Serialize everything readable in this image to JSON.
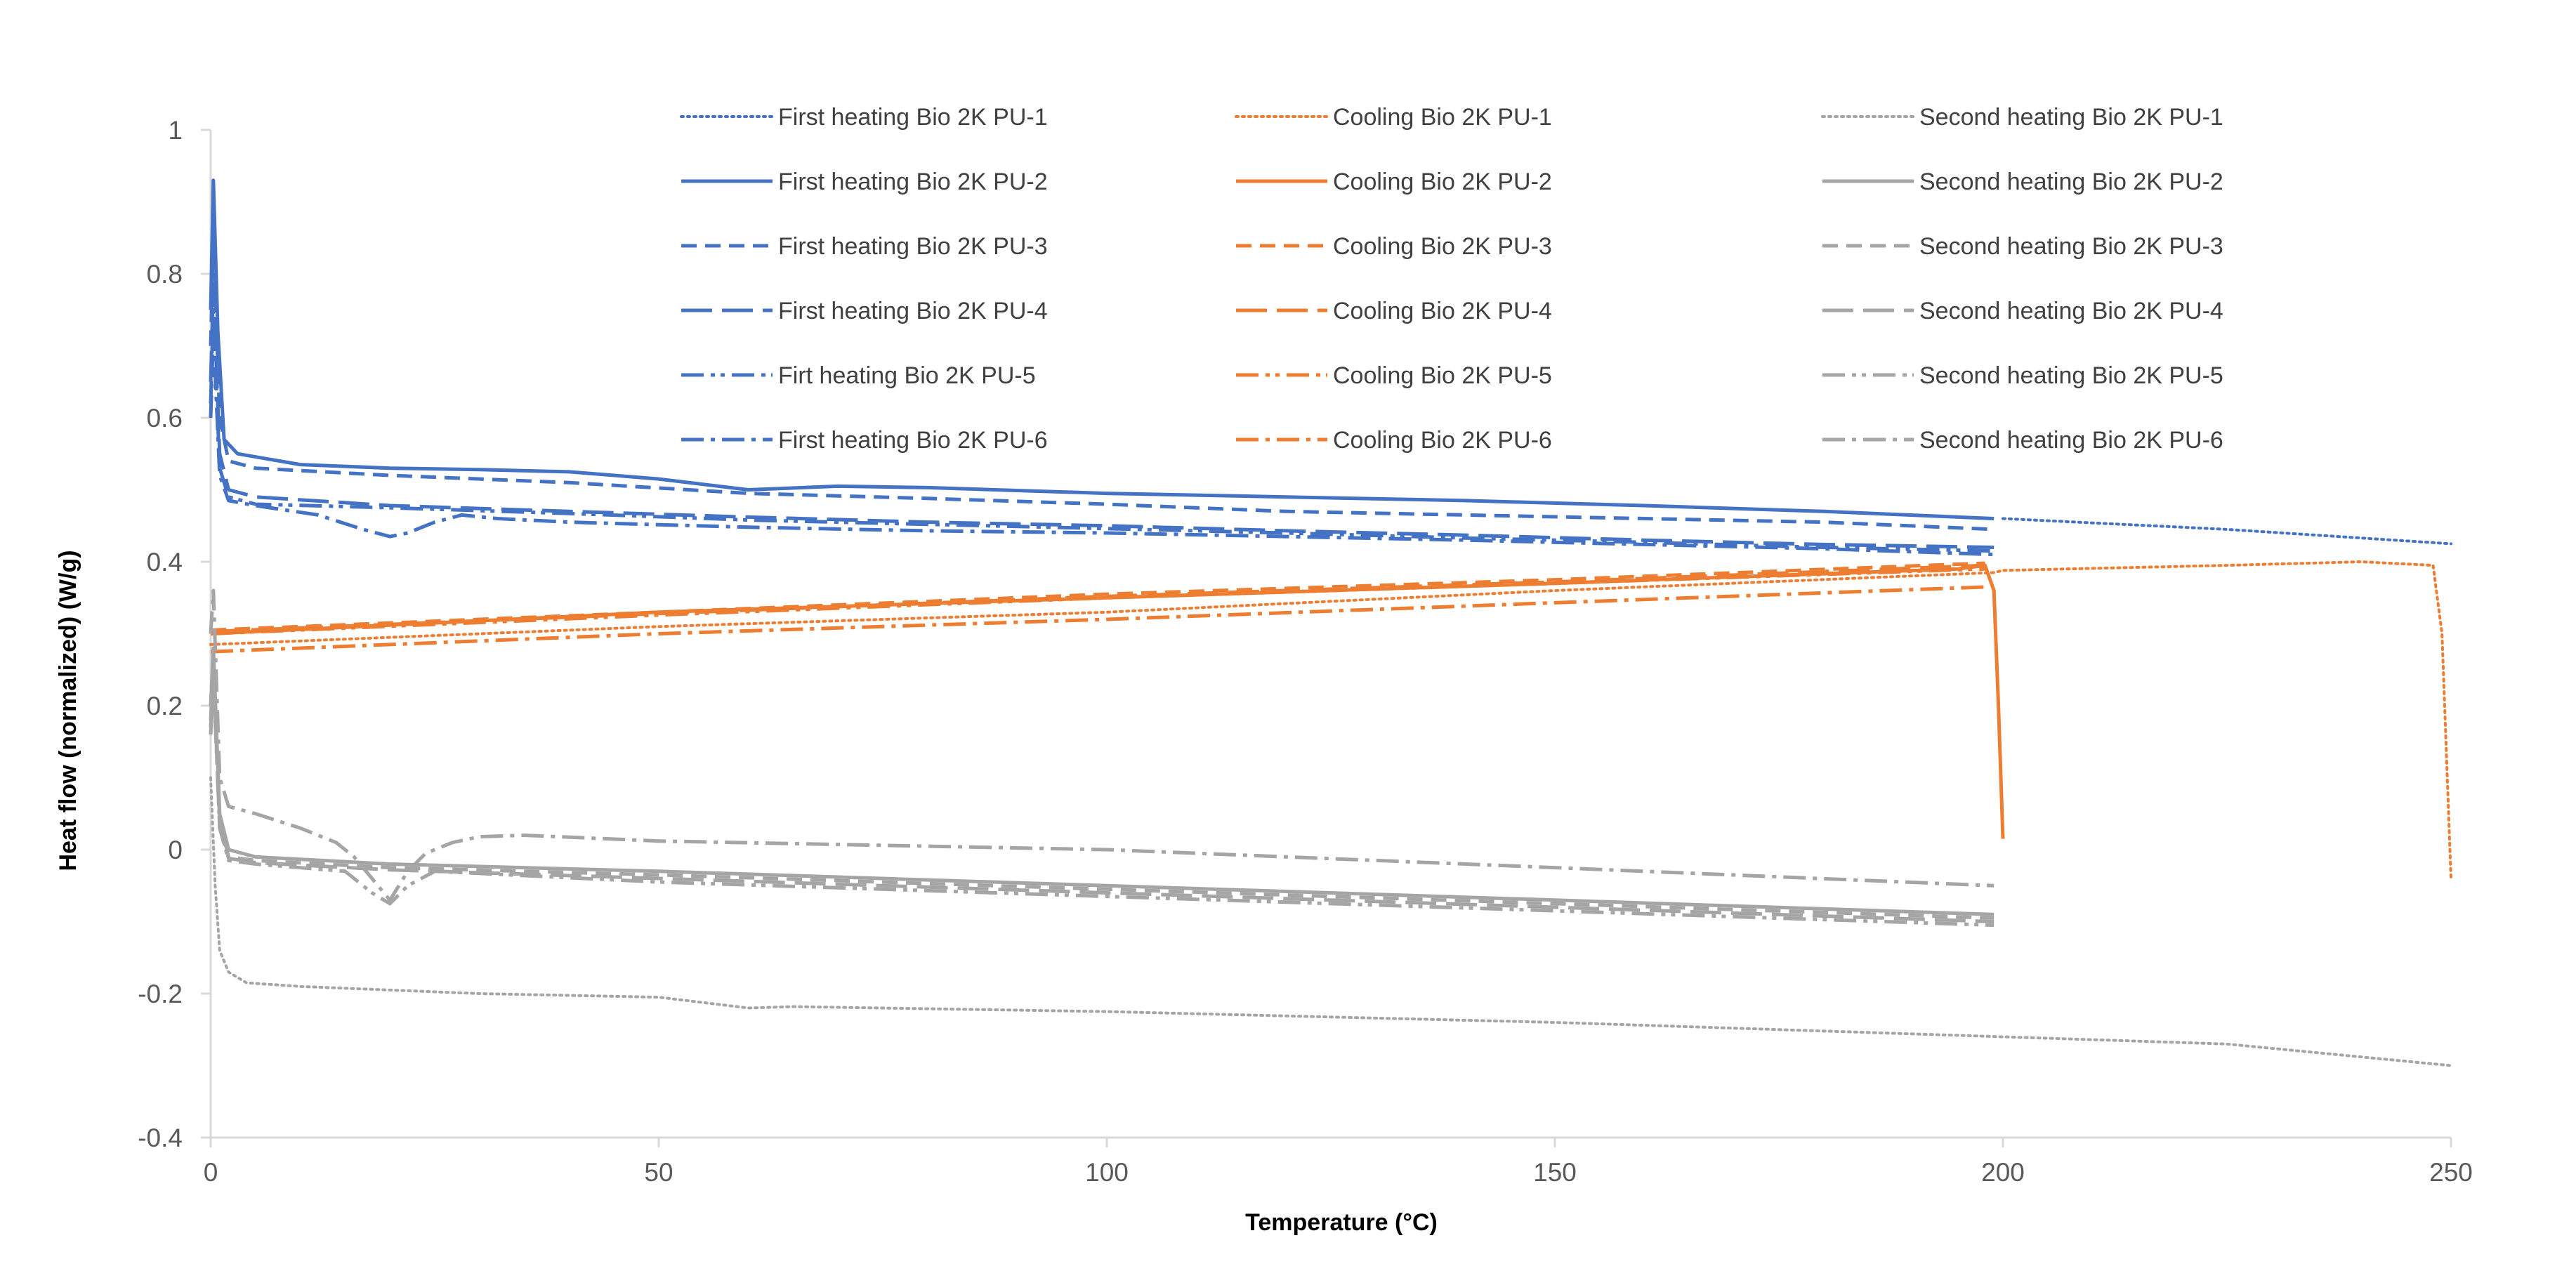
{
  "colors": {
    "first_heating": "#4472c4",
    "cooling": "#ed7d31",
    "second_heating": "#a5a5a5",
    "axis": "#d9d9d9",
    "tick_text": "#595959",
    "axis_title": "#000000"
  },
  "chart_data": {
    "type": "line",
    "title": "",
    "xlabel": "Temperature (°C)",
    "ylabel": "Heat flow (normalized) (W/g)",
    "xlim": [
      0,
      250
    ],
    "ylim": [
      -0.4,
      1.0
    ],
    "xticks": [
      0,
      50,
      100,
      150,
      200,
      250
    ],
    "yticks": [
      -0.4,
      -0.2,
      0,
      0.2,
      0.4,
      0.6,
      0.8,
      1.0
    ],
    "xtick_labels": [
      "0",
      "50",
      "100",
      "150",
      "200",
      "250"
    ],
    "ytick_labels": [
      "-0.4",
      "-0.2",
      "0",
      "0.2",
      "0.4",
      "0.6",
      "0.8",
      "1"
    ],
    "grid": false,
    "legend_position": "top",
    "series": [
      {
        "name": "First heating Bio 2K PU-1",
        "group": "first_heating",
        "style": "dotted",
        "x": [
          200,
          225,
          250
        ],
        "y": [
          0.46,
          0.445,
          0.425
        ]
      },
      {
        "name": "First heating Bio 2K PU-2",
        "group": "first_heating",
        "style": "solid",
        "x": [
          0,
          0.3,
          0.8,
          1.5,
          3,
          10,
          20,
          30,
          40,
          50,
          60,
          70,
          80,
          100,
          120,
          140,
          160,
          180,
          199
        ],
        "y": [
          0.75,
          0.93,
          0.72,
          0.57,
          0.55,
          0.535,
          0.53,
          0.528,
          0.525,
          0.515,
          0.5,
          0.505,
          0.503,
          0.495,
          0.49,
          0.485,
          0.478,
          0.47,
          0.46
        ]
      },
      {
        "name": "First heating Bio 2K PU-3",
        "group": "first_heating",
        "style": "dashed",
        "x": [
          0,
          0.3,
          1,
          2,
          5,
          20,
          40,
          60,
          80,
          100,
          120,
          140,
          160,
          180,
          199
        ],
        "y": [
          0.7,
          0.85,
          0.6,
          0.54,
          0.53,
          0.52,
          0.51,
          0.495,
          0.488,
          0.48,
          0.47,
          0.465,
          0.46,
          0.455,
          0.445
        ]
      },
      {
        "name": "First heating Bio 2K PU-4",
        "group": "first_heating",
        "style": "longdash",
        "x": [
          0,
          0.3,
          1,
          2,
          5,
          20,
          40,
          60,
          80,
          100,
          120,
          140,
          160,
          180,
          199
        ],
        "y": [
          0.65,
          0.78,
          0.55,
          0.5,
          0.49,
          0.478,
          0.47,
          0.462,
          0.455,
          0.45,
          0.443,
          0.437,
          0.43,
          0.424,
          0.42
        ]
      },
      {
        "name": "Firt heating Bio 2K PU-5",
        "group": "first_heating",
        "style": "dashdotdot",
        "x": [
          0,
          0.3,
          1,
          2,
          5,
          20,
          40,
          60,
          80,
          100,
          120,
          140,
          160,
          180,
          199
        ],
        "y": [
          0.62,
          0.75,
          0.53,
          0.49,
          0.48,
          0.475,
          0.467,
          0.458,
          0.452,
          0.446,
          0.44,
          0.433,
          0.427,
          0.42,
          0.415
        ]
      },
      {
        "name": "First heating Bio 2K PU-6",
        "group": "first_heating",
        "style": "dashdot",
        "x": [
          0,
          0.3,
          1,
          2,
          5,
          12,
          17,
          20,
          22,
          25,
          28,
          32,
          40,
          60,
          80,
          100,
          120,
          140,
          160,
          180,
          199
        ],
        "y": [
          0.6,
          0.72,
          0.52,
          0.485,
          0.478,
          0.465,
          0.445,
          0.435,
          0.44,
          0.455,
          0.465,
          0.46,
          0.455,
          0.448,
          0.443,
          0.44,
          0.435,
          0.43,
          0.424,
          0.418,
          0.41
        ]
      },
      {
        "name": "Cooling Bio 2K PU-1",
        "group": "cooling",
        "style": "dotted",
        "x": [
          0,
          50,
          100,
          150,
          199,
          200,
          225,
          240,
          248,
          249,
          250
        ],
        "y": [
          0.285,
          0.31,
          0.33,
          0.36,
          0.385,
          0.388,
          0.395,
          0.4,
          0.395,
          0.3,
          -0.04
        ]
      },
      {
        "name": "Cooling Bio 2K PU-2",
        "group": "cooling",
        "style": "solid",
        "x": [
          0,
          50,
          100,
          150,
          195,
          198,
          199,
          199.5,
          200
        ],
        "y": [
          0.3,
          0.33,
          0.35,
          0.37,
          0.39,
          0.395,
          0.36,
          0.2,
          0.015
        ]
      },
      {
        "name": "Cooling Bio 2K PU-3",
        "group": "cooling",
        "style": "dashed",
        "x": [
          0,
          50,
          100,
          150,
          198
        ],
        "y": [
          0.305,
          0.33,
          0.355,
          0.375,
          0.398
        ]
      },
      {
        "name": "Cooling Bio 2K PU-4",
        "group": "cooling",
        "style": "longdash",
        "x": [
          0,
          50,
          100,
          150,
          198
        ],
        "y": [
          0.303,
          0.328,
          0.352,
          0.372,
          0.395
        ]
      },
      {
        "name": "Cooling Bio 2K PU-5",
        "group": "cooling",
        "style": "dashdotdot",
        "x": [
          0,
          50,
          100,
          150,
          198
        ],
        "y": [
          0.3,
          0.326,
          0.35,
          0.37,
          0.39
        ]
      },
      {
        "name": "Cooling Bio 2K PU-6",
        "group": "cooling",
        "style": "dashdot",
        "x": [
          0,
          50,
          100,
          150,
          198
        ],
        "y": [
          0.275,
          0.3,
          0.32,
          0.343,
          0.365
        ]
      },
      {
        "name": "Second heating Bio 2K PU-1",
        "group": "second_heating",
        "style": "dotted",
        "x": [
          0,
          0.5,
          1,
          2,
          4,
          10,
          30,
          50,
          60,
          65,
          100,
          150,
          200,
          225,
          250
        ],
        "y": [
          0.1,
          -0.05,
          -0.14,
          -0.17,
          -0.185,
          -0.19,
          -0.2,
          -0.205,
          -0.22,
          -0.218,
          -0.225,
          -0.24,
          -0.26,
          -0.27,
          -0.3
        ]
      },
      {
        "name": "Second heating Bio 2K PU-2",
        "group": "second_heating",
        "style": "solid",
        "x": [
          0,
          0.3,
          1,
          2,
          5,
          20,
          50,
          100,
          150,
          199
        ],
        "y": [
          0.2,
          0.28,
          0.05,
          0.0,
          -0.01,
          -0.02,
          -0.03,
          -0.05,
          -0.07,
          -0.09
        ]
      },
      {
        "name": "Second heating Bio 2K PU-3",
        "group": "second_heating",
        "style": "dashed",
        "x": [
          0,
          0.3,
          1,
          2,
          5,
          20,
          50,
          100,
          150,
          199
        ],
        "y": [
          0.18,
          0.26,
          0.04,
          -0.01,
          -0.015,
          -0.025,
          -0.035,
          -0.055,
          -0.075,
          -0.095
        ]
      },
      {
        "name": "Second heating Bio 2K PU-4",
        "group": "second_heating",
        "style": "longdash",
        "x": [
          0,
          0.3,
          1,
          2,
          5,
          20,
          50,
          100,
          150,
          199
        ],
        "y": [
          0.17,
          0.25,
          0.03,
          -0.012,
          -0.018,
          -0.028,
          -0.04,
          -0.06,
          -0.08,
          -0.1
        ]
      },
      {
        "name": "Second heating Bio 2K PU-5",
        "group": "second_heating",
        "style": "dashdotdot",
        "x": [
          0,
          0.3,
          1,
          2,
          5,
          15,
          18,
          20,
          22,
          25,
          50,
          100,
          150,
          199
        ],
        "y": [
          0.16,
          0.24,
          0.03,
          -0.015,
          -0.02,
          -0.03,
          -0.06,
          -0.075,
          -0.05,
          -0.03,
          -0.045,
          -0.065,
          -0.085,
          -0.105
        ]
      },
      {
        "name": "Second heating Bio 2K PU-6",
        "group": "second_heating",
        "style": "dashdot",
        "x": [
          0,
          0.3,
          1,
          2,
          5,
          10,
          14,
          16,
          18,
          20,
          22,
          24,
          27,
          30,
          35,
          50,
          100,
          150,
          199
        ],
        "y": [
          0.3,
          0.36,
          0.1,
          0.06,
          0.05,
          0.03,
          0.01,
          -0.01,
          -0.04,
          -0.07,
          -0.03,
          -0.005,
          0.01,
          0.018,
          0.02,
          0.012,
          0.0,
          -0.025,
          -0.05
        ]
      }
    ]
  }
}
